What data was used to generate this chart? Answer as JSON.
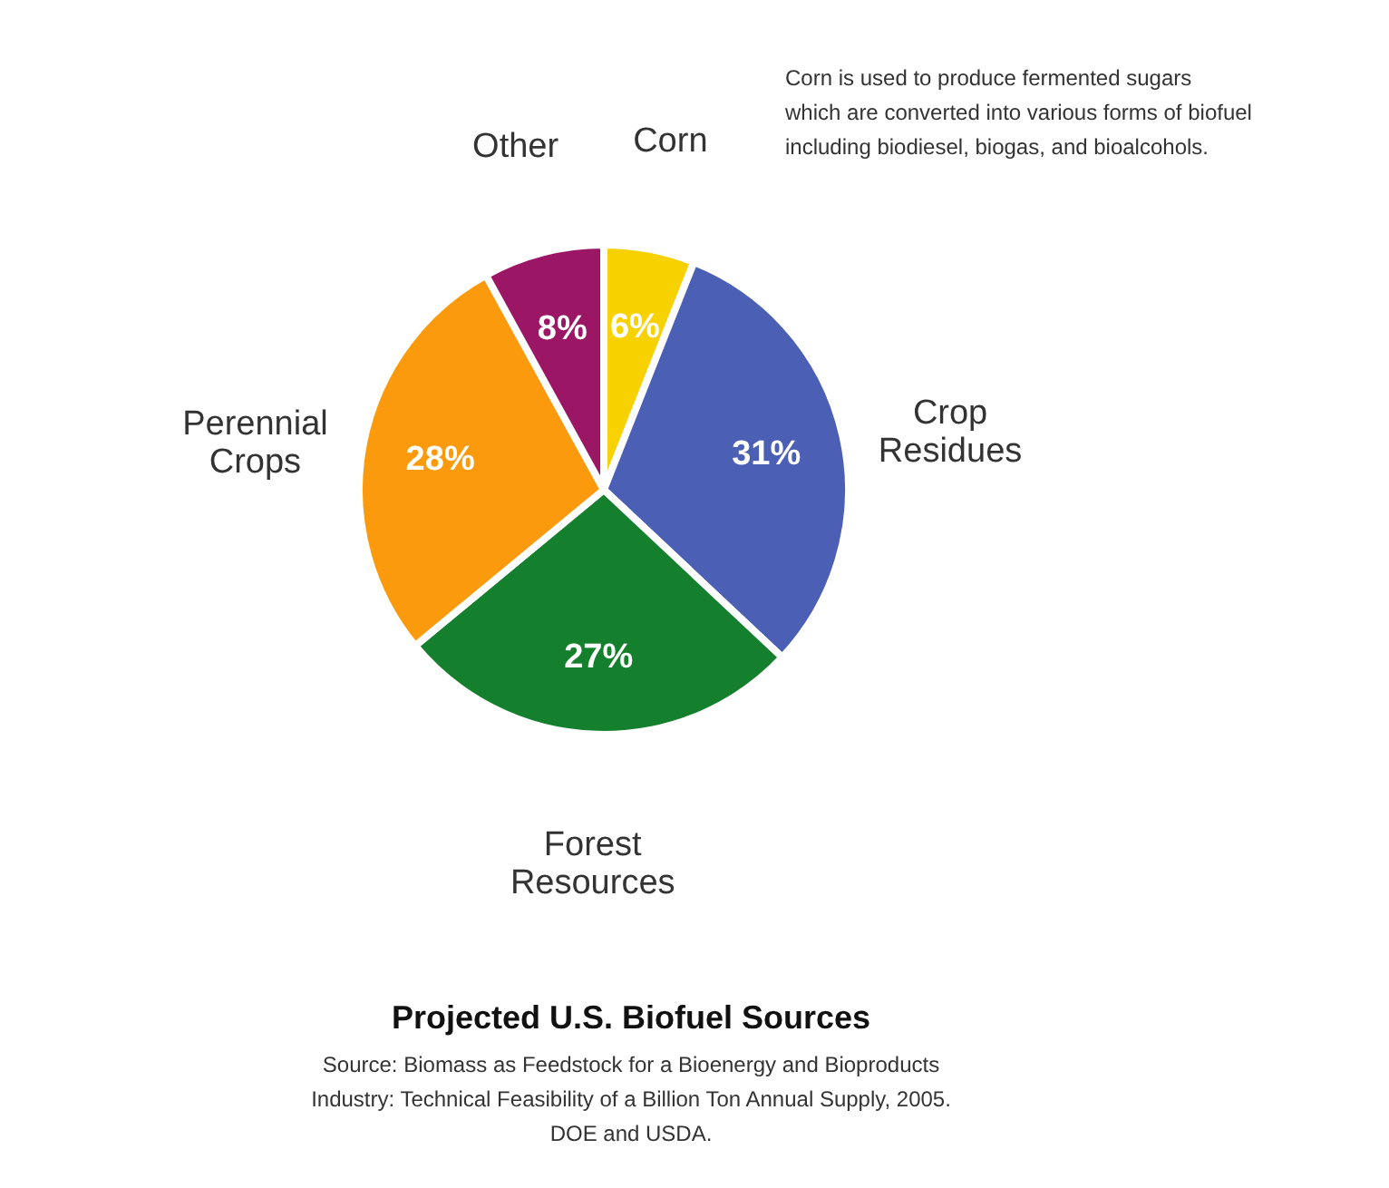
{
  "chart_data": {
    "type": "pie",
    "title": "Projected U.S. Biofuel Sources",
    "categories": [
      "Corn",
      "Crop Residues",
      "Forest Resources",
      "Perennial Crops",
      "Other"
    ],
    "values": [
      6,
      31,
      27,
      28,
      8
    ],
    "value_labels": [
      "6%",
      "31%",
      "27%",
      "28%",
      "8%"
    ],
    "colors": [
      "#f8d100",
      "#4b5fb4",
      "#14802e",
      "#fa9a0c",
      "#9b1766"
    ],
    "annotations": [
      "Corn is used to produce fermented sugars\nwhich are converted into various forms of biofuel\nincluding biodiesel, biogas, and bioalcohols.",
      "Source: Biomass as Feedstock for a Bioenergy and Bioproducts\nIndustry: Technical Feasibility of a Billion Ton Annual Supply, 2005.\nDOE and USDA."
    ],
    "data_labels": false
  }
}
